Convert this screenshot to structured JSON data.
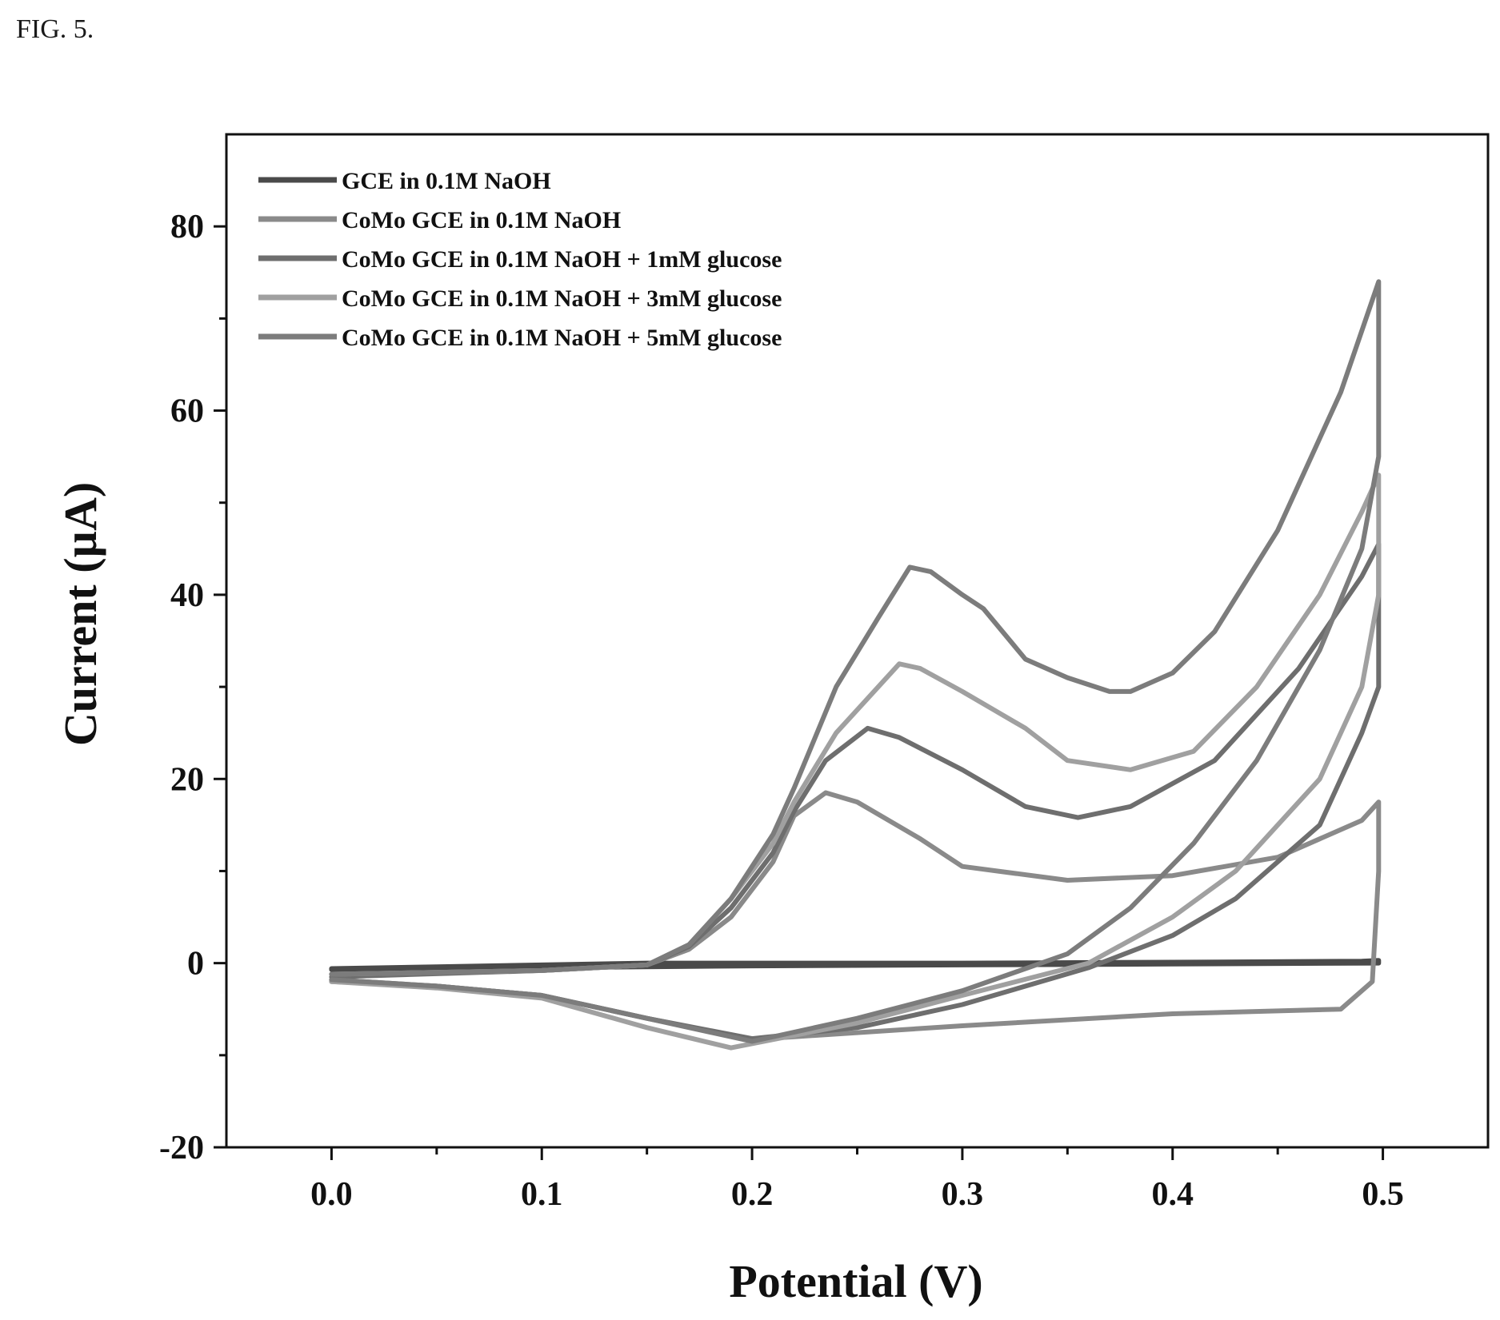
{
  "figure": {
    "label": "FIG. 5."
  },
  "chart_data": {
    "type": "line",
    "title": "",
    "xlabel": "Potential (V)",
    "ylabel": "Current (µA)",
    "xlim": [
      -0.05,
      0.55
    ],
    "ylim": [
      -20,
      90
    ],
    "x_ticks": [
      0.0,
      0.1,
      0.2,
      0.3,
      0.4,
      0.5
    ],
    "x_tick_labels": [
      "0.0",
      "0.1",
      "0.2",
      "0.3",
      "0.4",
      "0.5"
    ],
    "y_ticks": [
      -20,
      0,
      20,
      40,
      60,
      80
    ],
    "y_tick_labels": [
      "-20",
      "0",
      "20",
      "40",
      "60",
      "80"
    ],
    "grid": false,
    "legend_position": "top-left",
    "series": [
      {
        "name": "GCE in 0.1M NaOH",
        "color": "#4a4a4a",
        "points": [
          [
            0.0,
            -0.6
          ],
          [
            0.05,
            -0.4
          ],
          [
            0.1,
            -0.2
          ],
          [
            0.15,
            0.0
          ],
          [
            0.2,
            0.0
          ],
          [
            0.3,
            0.0
          ],
          [
            0.4,
            0.1
          ],
          [
            0.49,
            0.2
          ],
          [
            0.498,
            0.3
          ],
          [
            0.498,
            0.0
          ],
          [
            0.4,
            -0.1
          ],
          [
            0.3,
            -0.2
          ],
          [
            0.2,
            -0.3
          ],
          [
            0.1,
            -0.5
          ],
          [
            0.0,
            -0.7
          ]
        ]
      },
      {
        "name": "CoMo GCE in 0.1M NaOH",
        "color": "#8a8a8a",
        "points": [
          [
            0.0,
            -1.2
          ],
          [
            0.1,
            -0.8
          ],
          [
            0.15,
            -0.2
          ],
          [
            0.17,
            1.5
          ],
          [
            0.19,
            5.0
          ],
          [
            0.21,
            11.0
          ],
          [
            0.22,
            16.0
          ],
          [
            0.235,
            18.5
          ],
          [
            0.25,
            17.5
          ],
          [
            0.28,
            13.5
          ],
          [
            0.3,
            10.5
          ],
          [
            0.35,
            9.0
          ],
          [
            0.4,
            9.5
          ],
          [
            0.45,
            11.5
          ],
          [
            0.49,
            15.5
          ],
          [
            0.498,
            17.5
          ],
          [
            0.498,
            10.0
          ],
          [
            0.495,
            -2.0
          ],
          [
            0.48,
            -5.0
          ],
          [
            0.4,
            -5.5
          ],
          [
            0.3,
            -6.8
          ],
          [
            0.2,
            -8.3
          ],
          [
            0.15,
            -6.0
          ],
          [
            0.1,
            -3.5
          ],
          [
            0.05,
            -2.5
          ],
          [
            0.0,
            -2.0
          ]
        ]
      },
      {
        "name": "CoMo GCE in 0.1M NaOH + 1mM glucose",
        "color": "#6e6e6e",
        "points": [
          [
            0.0,
            -1.5
          ],
          [
            0.1,
            -0.8
          ],
          [
            0.15,
            -0.2
          ],
          [
            0.17,
            1.8
          ],
          [
            0.19,
            6.0
          ],
          [
            0.21,
            12.0
          ],
          [
            0.22,
            16.5
          ],
          [
            0.235,
            22.0
          ],
          [
            0.255,
            25.5
          ],
          [
            0.27,
            24.5
          ],
          [
            0.3,
            21.0
          ],
          [
            0.33,
            17.0
          ],
          [
            0.355,
            15.8
          ],
          [
            0.38,
            17.0
          ],
          [
            0.42,
            22.0
          ],
          [
            0.46,
            32.0
          ],
          [
            0.49,
            42.0
          ],
          [
            0.498,
            45.5
          ],
          [
            0.498,
            30.0
          ],
          [
            0.49,
            25.0
          ],
          [
            0.47,
            15.0
          ],
          [
            0.43,
            7.0
          ],
          [
            0.4,
            3.0
          ],
          [
            0.36,
            -0.5
          ],
          [
            0.3,
            -4.5
          ],
          [
            0.25,
            -7.0
          ],
          [
            0.2,
            -8.2
          ],
          [
            0.15,
            -6.0
          ],
          [
            0.1,
            -3.5
          ],
          [
            0.05,
            -2.5
          ],
          [
            0.0,
            -1.8
          ]
        ]
      },
      {
        "name": "CoMo GCE in 0.1M NaOH + 3mM glucose",
        "color": "#a0a0a0",
        "points": [
          [
            0.0,
            -1.2
          ],
          [
            0.1,
            -0.8
          ],
          [
            0.15,
            -0.2
          ],
          [
            0.17,
            2.0
          ],
          [
            0.19,
            7.0
          ],
          [
            0.21,
            13.0
          ],
          [
            0.22,
            17.5
          ],
          [
            0.24,
            25.0
          ],
          [
            0.27,
            32.5
          ],
          [
            0.28,
            32.0
          ],
          [
            0.3,
            29.5
          ],
          [
            0.33,
            25.5
          ],
          [
            0.35,
            22.0
          ],
          [
            0.38,
            21.0
          ],
          [
            0.41,
            23.0
          ],
          [
            0.44,
            30.0
          ],
          [
            0.47,
            40.0
          ],
          [
            0.49,
            49.0
          ],
          [
            0.498,
            53.0
          ],
          [
            0.498,
            40.0
          ],
          [
            0.49,
            30.0
          ],
          [
            0.47,
            20.0
          ],
          [
            0.43,
            10.0
          ],
          [
            0.4,
            5.0
          ],
          [
            0.36,
            0.0
          ],
          [
            0.3,
            -3.5
          ],
          [
            0.25,
            -6.5
          ],
          [
            0.19,
            -9.2
          ],
          [
            0.15,
            -7.0
          ],
          [
            0.1,
            -3.8
          ],
          [
            0.05,
            -2.7
          ],
          [
            0.0,
            -2.0
          ]
        ]
      },
      {
        "name": "CoMo GCE in 0.1M NaOH + 5mM glucose",
        "color": "#7c7c7c",
        "points": [
          [
            0.0,
            -1.2
          ],
          [
            0.1,
            -0.8
          ],
          [
            0.15,
            -0.2
          ],
          [
            0.17,
            2.0
          ],
          [
            0.19,
            7.0
          ],
          [
            0.21,
            14.0
          ],
          [
            0.22,
            19.0
          ],
          [
            0.24,
            30.0
          ],
          [
            0.26,
            37.5
          ],
          [
            0.275,
            43.0
          ],
          [
            0.285,
            42.5
          ],
          [
            0.3,
            40.0
          ],
          [
            0.31,
            38.5
          ],
          [
            0.33,
            33.0
          ],
          [
            0.35,
            31.0
          ],
          [
            0.37,
            29.5
          ],
          [
            0.38,
            29.5
          ],
          [
            0.4,
            31.5
          ],
          [
            0.42,
            36.0
          ],
          [
            0.45,
            47.0
          ],
          [
            0.48,
            62.0
          ],
          [
            0.498,
            74.0
          ],
          [
            0.498,
            55.0
          ],
          [
            0.49,
            45.0
          ],
          [
            0.47,
            34.0
          ],
          [
            0.44,
            22.0
          ],
          [
            0.41,
            13.0
          ],
          [
            0.38,
            6.0
          ],
          [
            0.35,
            1.0
          ],
          [
            0.3,
            -3.0
          ],
          [
            0.25,
            -6.0
          ],
          [
            0.2,
            -8.5
          ],
          [
            0.15,
            -6.0
          ],
          [
            0.1,
            -3.5
          ],
          [
            0.05,
            -2.5
          ],
          [
            0.0,
            -1.8
          ]
        ]
      }
    ]
  }
}
